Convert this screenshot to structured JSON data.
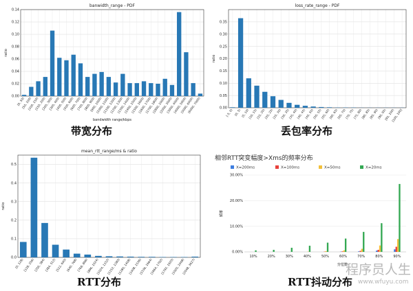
{
  "chart_data": [
    {
      "type": "bar",
      "title": "banwidth_range - PDF",
      "xlabel": "bandwidth range/kbps",
      "ylabel": "ratio",
      "ylim": [
        0,
        0.14
      ],
      "yticks": [
        0,
        0.02,
        0.04,
        0.06,
        0.08,
        0.1,
        0.12,
        0.14
      ],
      "ytick_labels": [
        "0.00",
        "0.02",
        "0.04",
        "0.06",
        "0.08",
        "0.10",
        "0.12",
        "0.14"
      ],
      "grid": true,
      "color": "#2878b5",
      "caption": "带宽分布",
      "categories": [
        "[0, 50)",
        "[50, 100)",
        "[100, 150)",
        "[150, 200)",
        "[200, 300)",
        "[300, 400)",
        "[400, 500)",
        "[500, 600)",
        "[600, 700)",
        "[700, 800)",
        "[800, 900)",
        "[900, 1000)",
        "[1000, 1100)",
        "[1100, 1200)",
        "[1200, 1300)",
        "[1300, 1400)",
        "[1400, 1500)",
        "[1500, 1600)",
        "[1600, 1700)",
        "[1700, 1800)",
        "[1800, 2000)",
        "[2000, 3000)",
        "[3000, 4000)",
        "[4000, 5000)",
        "[5000, 6000)",
        "[6000, 7000)"
      ],
      "values": [
        0.002,
        0.015,
        0.024,
        0.031,
        0.106,
        0.062,
        0.058,
        0.067,
        0.053,
        0.031,
        0.036,
        0.039,
        0.031,
        0.022,
        0.036,
        0.021,
        0.021,
        0.024,
        0.021,
        0.02,
        0.028,
        0.018,
        0.136,
        0.071,
        0.021,
        0.004
      ]
    },
    {
      "type": "bar",
      "title": "loss_rate_range - PDF",
      "xlabel": "",
      "ylabel": "ratio",
      "ylim": [
        0,
        0.4
      ],
      "yticks": [
        0,
        0.05,
        0.1,
        0.15,
        0.2,
        0.25,
        0.3,
        0.35
      ],
      "ytick_labels": [
        "0.00",
        "0.05",
        "0.10",
        "0.15",
        "0.20",
        "0.25",
        "0.30",
        "0.35"
      ],
      "grid": true,
      "color": "#2878b5",
      "caption": "丢包率分布",
      "categories": [
        "[-5, 0)",
        "[0, 5)",
        "[5, 10)",
        "[10, 15)",
        "[15, 20)",
        "[20, 25)",
        "[25, 30)",
        "[30, 35)",
        "[35, 40)",
        "[40, 45)",
        "[45, 50)",
        "[50, 55)",
        "[55, 60)",
        "[60, 65)",
        "[65, 70)",
        "[70, 75)",
        "[75, 80)",
        "[80, 85)",
        "[85, 90)",
        "[90, 95)",
        "[95, 100)",
        "[100, 100]"
      ],
      "values": [
        0.002,
        0.365,
        0.12,
        0.09,
        0.065,
        0.047,
        0.032,
        0.02,
        0.012,
        0.008,
        0.005,
        0.003,
        0.002,
        0.001,
        0.001,
        0.001,
        0.0005,
        0.0005,
        0.0005,
        0.0005,
        0.0005,
        0.0005
      ]
    },
    {
      "type": "bar",
      "title": "mean_rtt_range/ms & ratio",
      "xlabel": "",
      "ylabel": "ratio",
      "ylim": [
        0,
        0.55
      ],
      "yticks": [
        0,
        0.1,
        0.2,
        0.3,
        0.4,
        0.5
      ],
      "ytick_labels": [
        "0.0",
        "0.1",
        "0.2",
        "0.3",
        "0.4",
        "0.5"
      ],
      "grid": true,
      "color": "#2878b5",
      "caption": "RTT分布",
      "categories": [
        "[0, 128)",
        "[128, 256)",
        "[256, 384)",
        "[384, 512)",
        "[512, 640)",
        "[640, 768)",
        "[768, 896)",
        "[896, 1024)",
        "[1024, 1152)",
        "[1152, 1280)",
        "[1280, 1408)",
        "[1408, 1536)",
        "[1536, 1664)",
        "[1664, 1792)",
        "[1792, 1920)",
        "[1920, 2048)",
        "[2048, 3627)"
      ],
      "values": [
        0.083,
        0.536,
        0.185,
        0.068,
        0.042,
        0.02,
        0.015,
        0.008,
        0.006,
        0.005,
        0.004,
        0.003,
        0.003,
        0.002,
        0.002,
        0.002,
        0.004
      ]
    },
    {
      "type": "bar",
      "title": "相邻RTT突变幅度>Xms的频率分布",
      "xlabel": "分位数",
      "ylabel": "频率",
      "ylim": [
        0,
        30
      ],
      "yticks": [
        0,
        10,
        20,
        30
      ],
      "ytick_labels": [
        "0.00%",
        "10.00%",
        "20.00%",
        "30.00%"
      ],
      "grid": true,
      "legend_position": "top-left",
      "caption": "RTT抖动分布",
      "categories": [
        "10%",
        "20%",
        "30%",
        "40%",
        "50%",
        "60%",
        "70%",
        "80%",
        "90%"
      ],
      "series": [
        {
          "name": "X=200ms",
          "color": "#3e7ee0",
          "values": [
            0,
            0,
            0,
            0,
            0,
            0.1,
            0.2,
            0.5,
            1.0
          ]
        },
        {
          "name": "X=100ms",
          "color": "#e8413b",
          "values": [
            0,
            0,
            0,
            0,
            0.1,
            0.2,
            0.4,
            0.8,
            2.0
          ]
        },
        {
          "name": "X=50ms",
          "color": "#f2c03a",
          "values": [
            0,
            0,
            0,
            0.1,
            0.3,
            0.6,
            1.2,
            2.5,
            5.0
          ]
        },
        {
          "name": "X=20ms",
          "color": "#34a853",
          "values": [
            0.6,
            0.8,
            1.6,
            2.4,
            3.6,
            5.2,
            7.8,
            11.2,
            26.5
          ]
        }
      ]
    }
  ],
  "watermark": {
    "text": "程序员人生",
    "url": "www.wfuyu.com"
  }
}
